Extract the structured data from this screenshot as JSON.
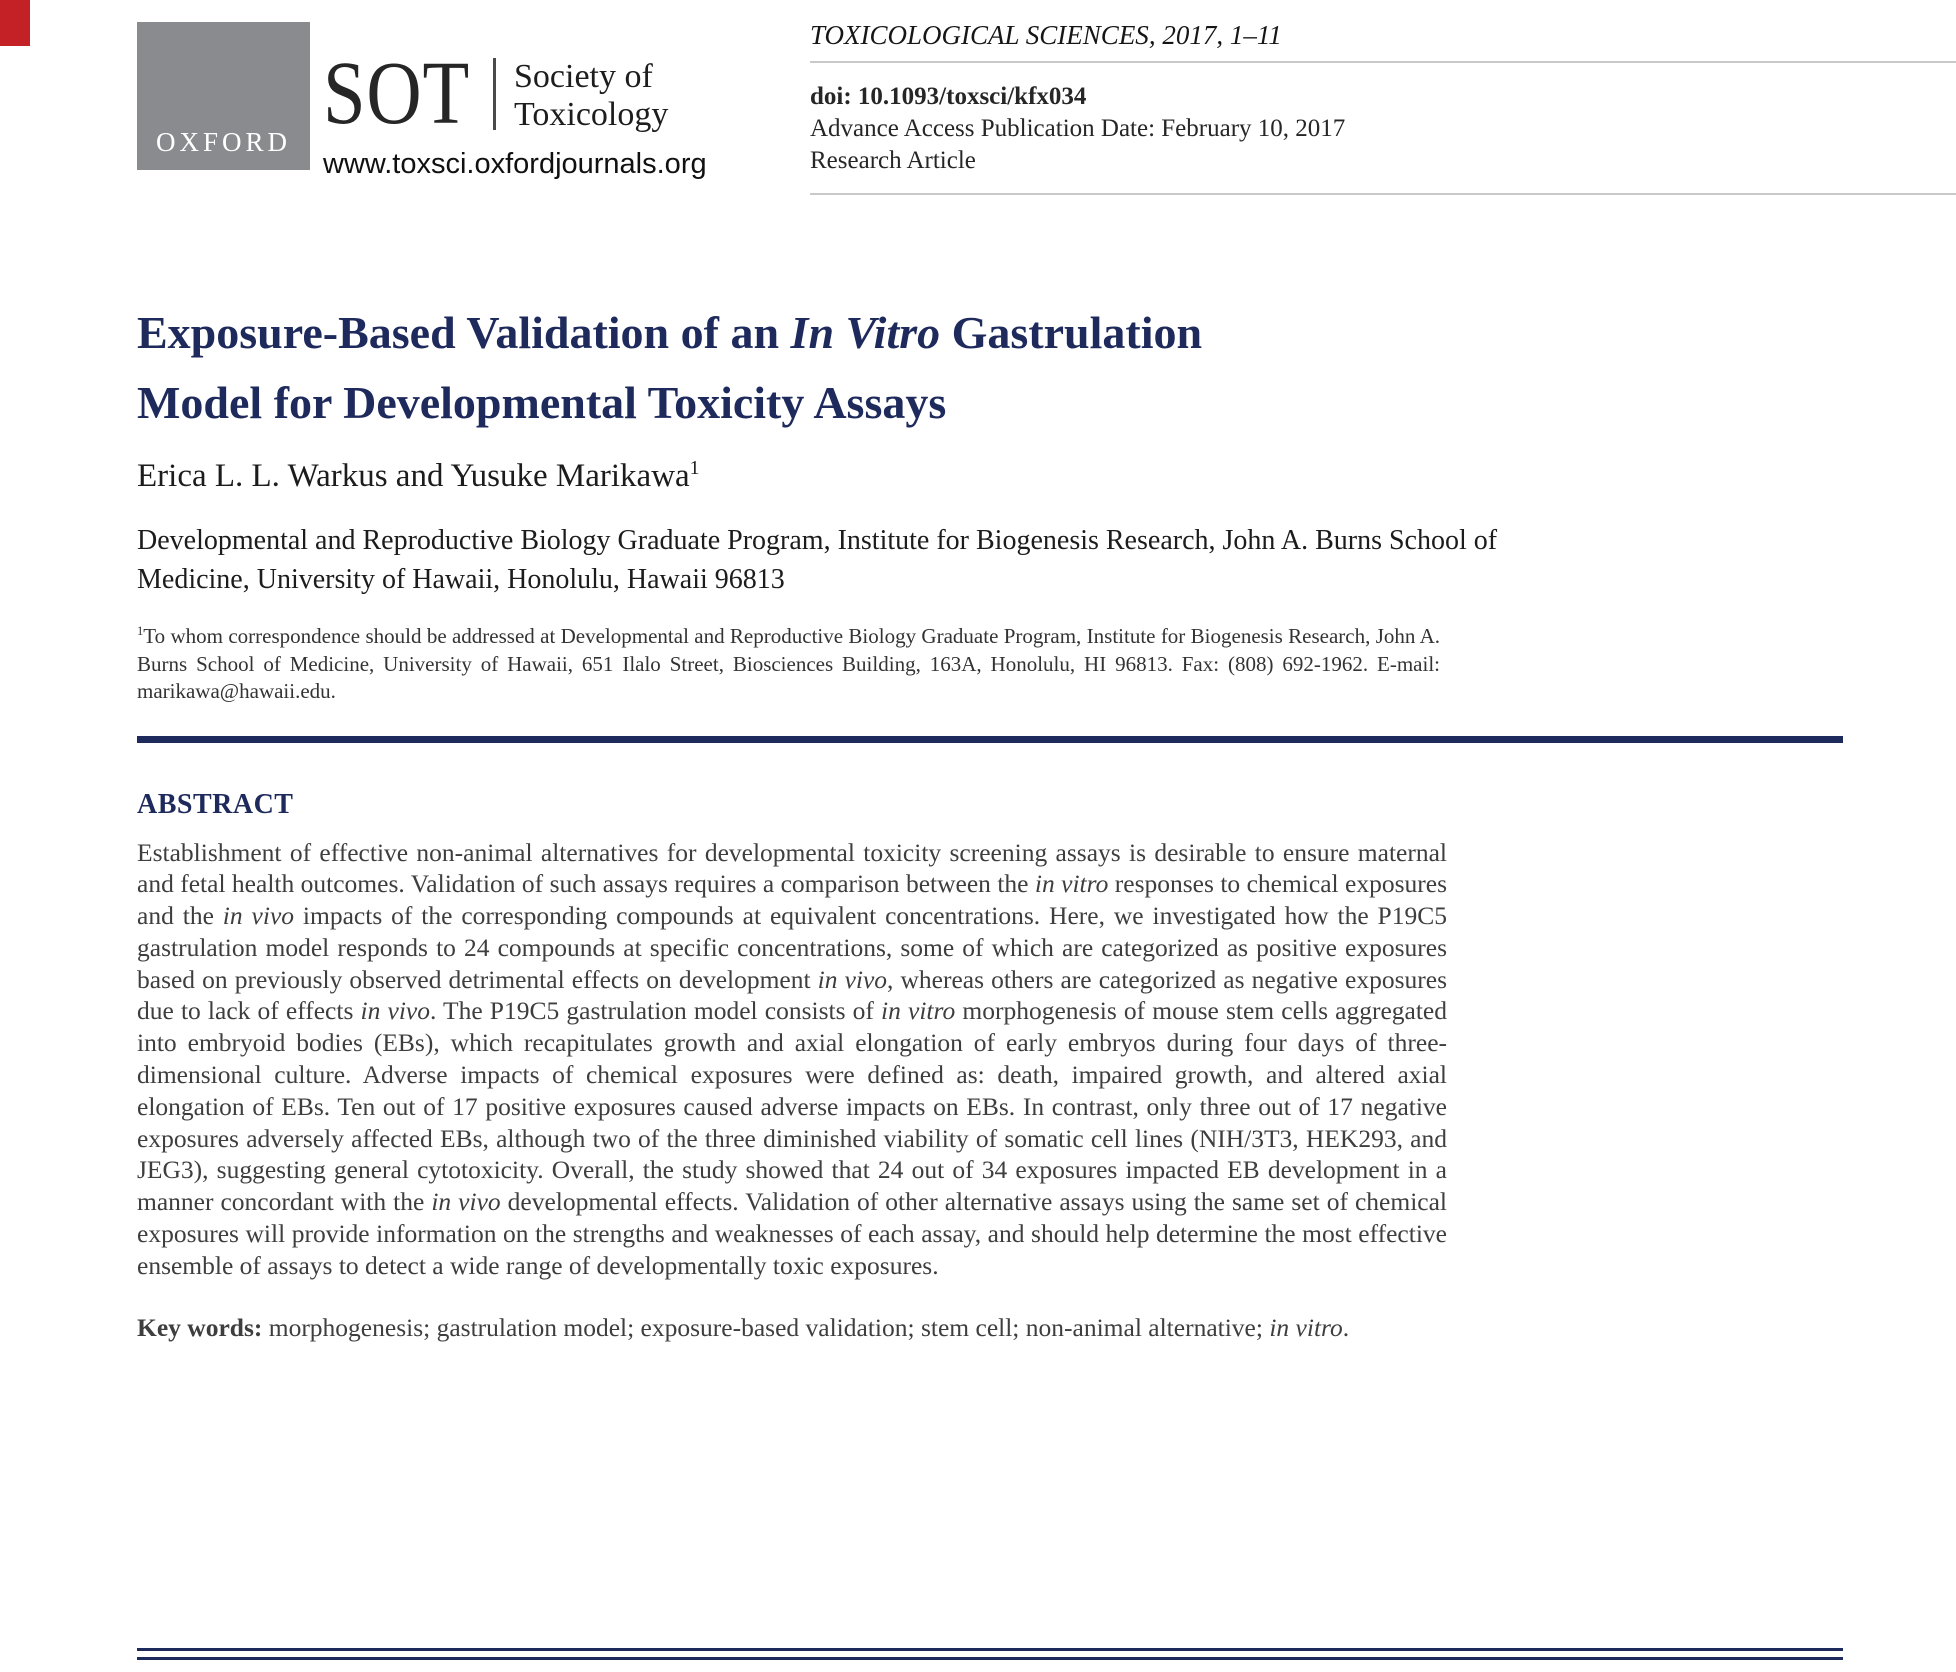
{
  "colors": {
    "navy": "#1e2a5c",
    "link_blue": "#156a9b",
    "logo_gray": "#8a8b8e",
    "corner_red": "#c42127",
    "divider_gray": "#c9c9c9"
  },
  "header": {
    "oxford_label": "OXFORD",
    "sot": {
      "acronym": "SOT",
      "name_line1": "Society of",
      "name_line2": "Toxicology",
      "url": "www.toxsci.oxfordjournals.org"
    },
    "journal_line": [
      {
        "t": "TOXICOLOGICAL SCIENCES",
        "i": true
      },
      {
        "t": ", 2017, 1–11",
        "i": true
      }
    ],
    "doi": "doi: 10.1093/toxsci/kfx034",
    "advance_access": "Advance Access Publication Date: February 10, 2017",
    "article_type": "Research Article"
  },
  "article": {
    "title_rich": [
      {
        "t": "Exposure-Based Validation of an "
      },
      {
        "t": "In Vitro",
        "i": true
      },
      {
        "t": " Gastrulation"
      },
      {
        "br": true
      },
      {
        "t": "Model for Developmental Toxicity Assays"
      }
    ],
    "authors_rich": [
      {
        "t": "Erica L. L. Warkus and Yusuke Marikawa"
      },
      {
        "t": "1",
        "sup": true
      }
    ],
    "affiliation": "Developmental and Reproductive Biology Graduate Program, Institute for Biogenesis Research, John A. Burns School of Medicine, University of Hawaii, Honolulu, Hawaii 96813",
    "correspondence_rich": [
      {
        "t": "1",
        "sup": true
      },
      {
        "t": "To whom correspondence should be addressed at Developmental and Reproductive Biology Graduate Program, Institute for Biogenesis Research, John A. Burns School of Medicine, University of Hawaii, 651 Ilalo Street, Biosciences Building, 163A, Honolulu, HI 96813. Fax: (808) 692-1962. E-mail: marikawa@hawaii.edu."
      }
    ]
  },
  "abstract": {
    "heading": "ABSTRACT",
    "body_rich": [
      {
        "t": "Establishment of effective non-animal alternatives for developmental toxicity screening assays is desirable to ensure maternal and fetal health outcomes. Validation of such assays requires a comparison between the "
      },
      {
        "t": "in vitro",
        "i": true
      },
      {
        "t": " responses to chemical exposures and the "
      },
      {
        "t": "in vivo",
        "i": true
      },
      {
        "t": " impacts of the corresponding compounds at equivalent concentrations. Here, we investigated how the P19C5 gastrulation model responds to 24 compounds at specific concentrations, some of which are categorized as positive exposures based on previously observed detrimental effects on development "
      },
      {
        "t": "in vivo",
        "i": true
      },
      {
        "t": ", whereas others are categorized as negative exposures due to lack of effects "
      },
      {
        "t": "in vivo",
        "i": true
      },
      {
        "t": ". The P19C5 gastrulation model consists of "
      },
      {
        "t": "in vitro",
        "i": true
      },
      {
        "t": " morphogenesis of mouse stem cells aggregated into embryoid bodies (EBs), which recapitulates growth and axial elongation of early embryos during four days of three-dimensional culture. Adverse impacts of chemical exposures were defined as: death, impaired growth, and altered axial elongation of EBs. Ten out of 17 positive exposures caused adverse impacts on EBs. In contrast, only three out of 17 negative exposures adversely affected EBs, although two of the three diminished viability of somatic cell lines (NIH/3T3, HEK293, and JEG3), suggesting general cytotoxicity. Overall, the study showed that 24 out of 34 exposures impacted EB development in a manner concordant with the "
      },
      {
        "t": "in vivo",
        "i": true
      },
      {
        "t": " developmental effects. Validation of other alternative assays using the same set of chemical exposures will provide information on the strengths and weaknesses of each assay, and should help determine the most effective ensemble of assays to detect a wide range of developmentally toxic exposures."
      }
    ],
    "keywords_rich": [
      {
        "t": "Key words: ",
        "b": true
      },
      {
        "t": "morphogenesis; gastrulation model; exposure-based validation; stem cell; non-animal alternative; "
      },
      {
        "t": "in vitro",
        "i": true
      },
      {
        "t": "."
      }
    ]
  }
}
